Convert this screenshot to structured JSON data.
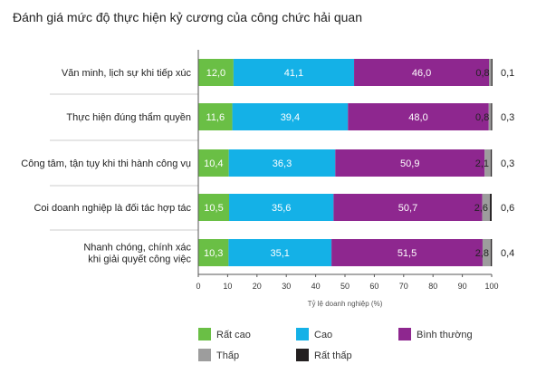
{
  "chart_data": {
    "type": "bar",
    "orientation": "horizontal",
    "stacked": true,
    "title": "Đánh giá mức độ thực hiện kỷ cương của công chức hải quan",
    "xlabel": "Tỷ lệ doanh nghiệp (%)",
    "ylabel": "",
    "xlim": [
      0,
      100
    ],
    "xticks": [
      0,
      10,
      20,
      30,
      40,
      50,
      60,
      70,
      80,
      90,
      100
    ],
    "grid": false,
    "legend_position": "bottom",
    "categories": [
      [
        "Văn minh, lịch sự khi tiếp xúc"
      ],
      [
        "Thực hiện đúng thẩm quyền"
      ],
      [
        "Công tâm, tận tụy khi thi hành công vụ"
      ],
      [
        "Coi doanh nghiệp là đối tác hợp tác"
      ],
      [
        "Nhanh chóng, chính xác",
        "khi giải quyết công việc"
      ]
    ],
    "series": [
      {
        "name": "Rất cao",
        "color": "#6abf45",
        "values": [
          12.0,
          11.6,
          10.4,
          10.5,
          10.3
        ],
        "labels": [
          "12,0",
          "11,6",
          "10,4",
          "10,5",
          "10,3"
        ]
      },
      {
        "name": "Cao",
        "color": "#14b1e7",
        "values": [
          41.1,
          39.4,
          36.3,
          35.6,
          35.1
        ],
        "labels": [
          "41,1",
          "39,4",
          "36,3",
          "35,6",
          "35,1"
        ]
      },
      {
        "name": "Bình thường",
        "color": "#8e278f",
        "values": [
          46.0,
          48.0,
          50.9,
          50.7,
          51.5
        ],
        "labels": [
          "46,0",
          "48,0",
          "50,9",
          "50,7",
          "51,5"
        ]
      },
      {
        "name": "Thấp",
        "color": "#9d9d9d",
        "values": [
          0.8,
          0.8,
          2.1,
          2.6,
          2.8
        ],
        "labels": [
          "0,8",
          "0,8",
          "2,1",
          "2,6",
          "2,8"
        ]
      },
      {
        "name": "Rất thấp",
        "color": "#231f20",
        "values": [
          0.1,
          0.3,
          0.3,
          0.6,
          0.4
        ],
        "labels": [
          "0,1",
          "0,3",
          "0,3",
          "0,6",
          "0,4"
        ]
      }
    ]
  }
}
